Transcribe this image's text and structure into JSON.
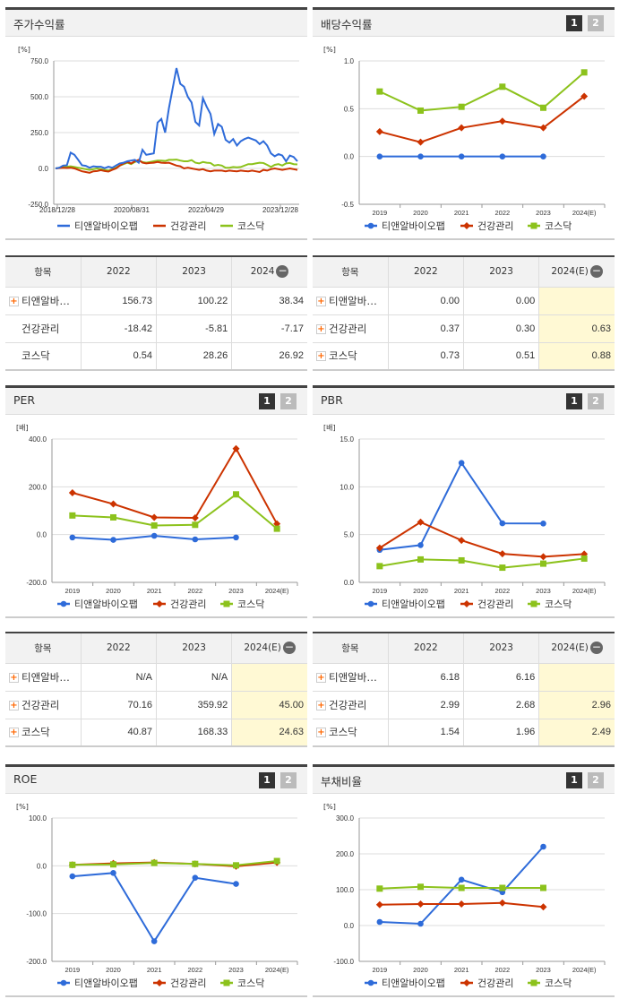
{
  "legend": [
    "티앤알바이오팹",
    "건강관리",
    "코스닥"
  ],
  "colors": {
    "blue": "#2e6bd9",
    "red": "#cc3300",
    "green": "#8cc21c"
  },
  "page_buttons": [
    "1",
    "2"
  ],
  "charts": [
    {
      "id": "stock",
      "title": "주가수익률",
      "unit": "[%]",
      "type": "time",
      "ylim": [
        -250,
        750
      ],
      "yticks": [
        "750.0",
        "500.0",
        "250.0",
        "0.0",
        "-250.0"
      ],
      "ytickv": [
        750,
        500,
        250,
        0,
        -250
      ],
      "xlabels": [
        "2018/12/28",
        "2020/08/31",
        "2022/04/29",
        "2023/12/28"
      ],
      "series": [
        {
          "values": [
            0,
            5,
            20,
            22,
            110,
            95,
            60,
            22,
            18,
            5,
            15,
            12,
            12,
            2,
            12,
            5,
            20,
            35,
            40,
            50,
            55,
            60,
            40,
            130,
            95,
            100,
            105,
            320,
            345,
            250,
            420,
            560,
            700,
            590,
            570,
            500,
            460,
            325,
            300,
            490,
            430,
            380,
            240,
            310,
            290,
            200,
            180,
            205,
            160,
            190,
            205,
            215,
            205,
            195,
            170,
            190,
            160,
            105,
            85,
            100,
            90,
            50,
            90,
            80,
            50
          ]
        },
        {
          "values": [
            0,
            2,
            5,
            3,
            5,
            0,
            -10,
            -20,
            -25,
            -30,
            -20,
            -18,
            -12,
            -18,
            -22,
            -10,
            0,
            20,
            35,
            45,
            35,
            50,
            60,
            40,
            35,
            38,
            40,
            45,
            40,
            38,
            40,
            30,
            20,
            15,
            0,
            5,
            0,
            -5,
            -10,
            -5,
            -15,
            -20,
            -15,
            -15,
            -15,
            -20,
            -15,
            -18,
            -20,
            -15,
            -18,
            -20,
            -15,
            -20,
            -25,
            -10,
            -15,
            -5,
            0,
            -5,
            -10,
            -5,
            0,
            -5,
            -10
          ]
        },
        {
          "values": [
            0,
            5,
            10,
            12,
            15,
            10,
            5,
            0,
            -5,
            -10,
            -5,
            0,
            -5,
            -10,
            -15,
            -5,
            5,
            20,
            30,
            40,
            30,
            45,
            55,
            45,
            40,
            45,
            50,
            55,
            55,
            52,
            60,
            60,
            62,
            55,
            50,
            50,
            58,
            40,
            35,
            45,
            40,
            38,
            20,
            25,
            20,
            5,
            5,
            10,
            8,
            10,
            20,
            30,
            30,
            35,
            40,
            38,
            25,
            10,
            25,
            30,
            20,
            35,
            38,
            30,
            28
          ]
        }
      ]
    },
    {
      "id": "dividend",
      "title": "배당수익률",
      "unit": "[%]",
      "type": "cat",
      "ylim": [
        -0.5,
        1.0
      ],
      "yticks": [
        "1.0",
        "0.5",
        "0.0",
        "-0.5"
      ],
      "ytickv": [
        1.0,
        0.5,
        0.0,
        -0.5
      ],
      "categories": [
        "2019",
        "2020",
        "2021",
        "2022",
        "2023",
        "2024(E)"
      ],
      "series": [
        {
          "values": [
            0,
            0,
            0,
            0,
            0,
            null
          ]
        },
        {
          "values": [
            0.26,
            0.15,
            0.3,
            0.37,
            0.3,
            0.63
          ]
        },
        {
          "values": [
            0.68,
            0.48,
            0.52,
            0.73,
            0.51,
            0.88
          ]
        }
      ]
    },
    {
      "id": "per",
      "title": "PER",
      "unit": "[배]",
      "type": "cat",
      "ylim": [
        -200,
        400
      ],
      "yticks": [
        "400.0",
        "200.0",
        "0.0",
        "-200.0"
      ],
      "ytickv": [
        400,
        200,
        0,
        -200
      ],
      "categories": [
        "2019",
        "2020",
        "2021",
        "2022",
        "2023",
        "2024(E)"
      ],
      "series": [
        {
          "values": [
            -12,
            -22,
            -5,
            -20,
            -12,
            null
          ]
        },
        {
          "values": [
            175,
            128,
            72,
            70.16,
            359.92,
            45.0
          ]
        },
        {
          "values": [
            80,
            72,
            38,
            40.87,
            168.33,
            24.63
          ]
        }
      ]
    },
    {
      "id": "pbr",
      "title": "PBR",
      "unit": "[배]",
      "type": "cat",
      "ylim": [
        0,
        15
      ],
      "yticks": [
        "15.0",
        "10.0",
        "5.0",
        "0.0"
      ],
      "ytickv": [
        15,
        10,
        5,
        0
      ],
      "categories": [
        "2019",
        "2020",
        "2021",
        "2022",
        "2023",
        "2024(E)"
      ],
      "series": [
        {
          "values": [
            3.4,
            3.9,
            12.5,
            6.18,
            6.16,
            null
          ]
        },
        {
          "values": [
            3.6,
            6.3,
            4.4,
            2.99,
            2.68,
            2.96
          ]
        },
        {
          "values": [
            1.7,
            2.4,
            2.3,
            1.54,
            1.96,
            2.49
          ]
        }
      ]
    },
    {
      "id": "roe",
      "title": "ROE",
      "unit": "[%]",
      "type": "cat",
      "ylim": [
        -200,
        100
      ],
      "yticks": [
        "100.0",
        "0.0",
        "-100.0",
        "-200.0"
      ],
      "ytickv": [
        100,
        0,
        -100,
        -200
      ],
      "categories": [
        "2019",
        "2020",
        "2021",
        "2022",
        "2023",
        "2024(E)"
      ],
      "series": [
        {
          "values": [
            -22,
            -15,
            -158,
            -25,
            -38,
            null
          ]
        },
        {
          "values": [
            2,
            5,
            7,
            4,
            -1,
            7
          ]
        },
        {
          "values": [
            2,
            3,
            6,
            4,
            1,
            10
          ]
        }
      ]
    },
    {
      "id": "debt",
      "title": "부채비율",
      "unit": "[%]",
      "type": "cat",
      "ylim": [
        -100,
        300
      ],
      "yticks": [
        "300.0",
        "200.0",
        "100.0",
        "0.0",
        "-100.0"
      ],
      "ytickv": [
        300,
        200,
        100,
        0,
        -100
      ],
      "categories": [
        "2019",
        "2020",
        "2021",
        "2022",
        "2023",
        "2024(E)"
      ],
      "series": [
        {
          "values": [
            10,
            5,
            128,
            93,
            220,
            null
          ]
        },
        {
          "values": [
            58,
            60,
            60,
            63,
            52,
            null
          ]
        },
        {
          "values": [
            103,
            108,
            105,
            105,
            105,
            null
          ]
        }
      ]
    }
  ],
  "tables": [
    {
      "id": "stock-table",
      "headers": [
        "항목",
        "2022",
        "2023",
        "2024"
      ],
      "est": false,
      "rows": [
        {
          "name": "티앤알바…",
          "plus": true,
          "v": [
            "156.73",
            "100.22",
            "38.34"
          ]
        },
        {
          "name": "건강관리",
          "plus": false,
          "v": [
            "-18.42",
            "-5.81",
            "-7.17"
          ]
        },
        {
          "name": "코스닥",
          "plus": false,
          "v": [
            "0.54",
            "28.26",
            "26.92"
          ]
        }
      ]
    },
    {
      "id": "dividend-table",
      "headers": [
        "항목",
        "2022",
        "2023",
        "2024(E)"
      ],
      "est": true,
      "rows": [
        {
          "name": "티앤알바…",
          "plus": true,
          "v": [
            "0.00",
            "0.00",
            ""
          ]
        },
        {
          "name": "건강관리",
          "plus": true,
          "v": [
            "0.37",
            "0.30",
            "0.63"
          ]
        },
        {
          "name": "코스닥",
          "plus": true,
          "v": [
            "0.73",
            "0.51",
            "0.88"
          ]
        }
      ]
    },
    {
      "id": "per-table",
      "headers": [
        "항목",
        "2022",
        "2023",
        "2024(E)"
      ],
      "est": true,
      "rows": [
        {
          "name": "티앤알바…",
          "plus": true,
          "v": [
            "N/A",
            "N/A",
            ""
          ]
        },
        {
          "name": "건강관리",
          "plus": true,
          "v": [
            "70.16",
            "359.92",
            "45.00"
          ]
        },
        {
          "name": "코스닥",
          "plus": true,
          "v": [
            "40.87",
            "168.33",
            "24.63"
          ]
        }
      ]
    },
    {
      "id": "pbr-table",
      "headers": [
        "항목",
        "2022",
        "2023",
        "2024(E)"
      ],
      "est": true,
      "rows": [
        {
          "name": "티앤알바…",
          "plus": true,
          "v": [
            "6.18",
            "6.16",
            ""
          ]
        },
        {
          "name": "건강관리",
          "plus": true,
          "v": [
            "2.99",
            "2.68",
            "2.96"
          ]
        },
        {
          "name": "코스닥",
          "plus": true,
          "v": [
            "1.54",
            "1.96",
            "2.49"
          ]
        }
      ]
    }
  ]
}
